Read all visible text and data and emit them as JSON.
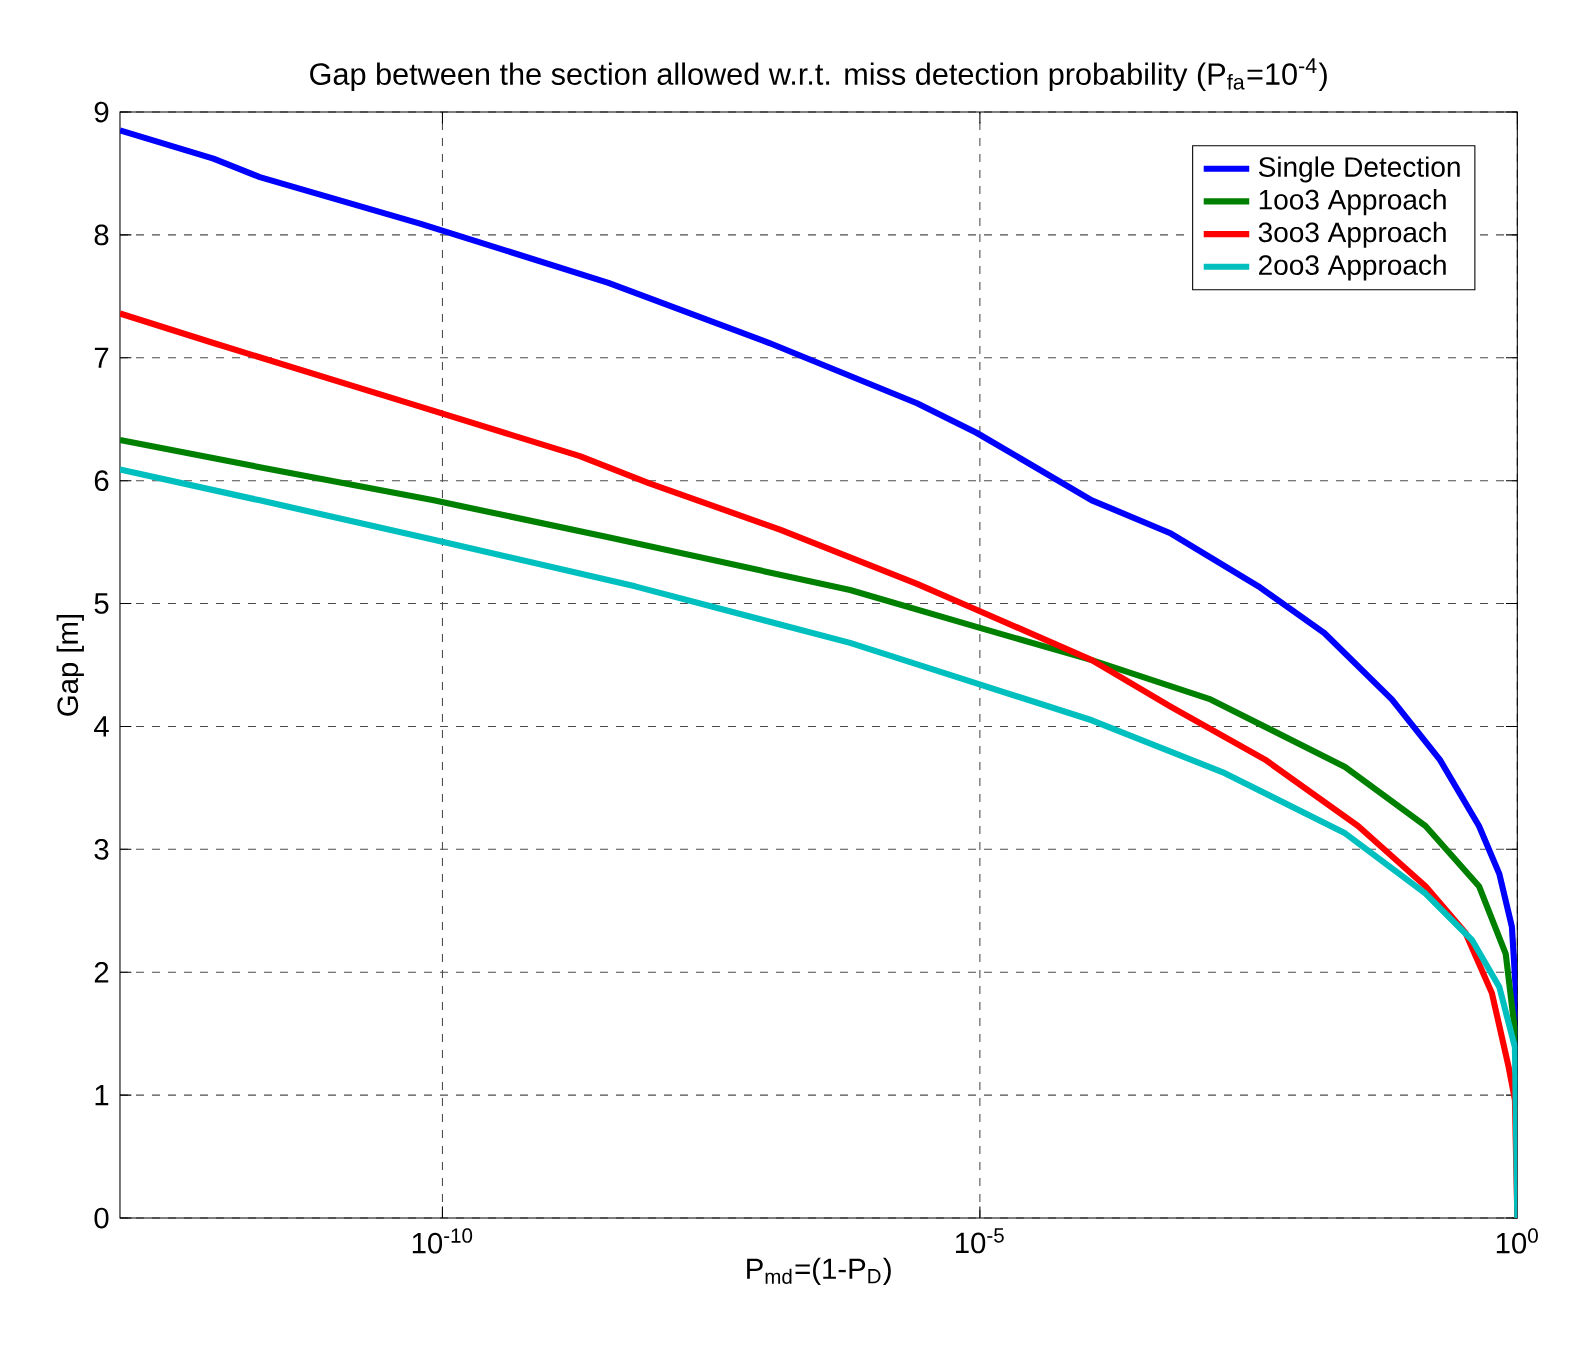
{
  "chart_data": {
    "type": "line",
    "title": "Gap between the section allowed w.r.t. miss detection probability (P$_{fa}$=10$^{-4}$)",
    "xlabel": "P$_{md}$=(1-P$_{D}$)",
    "ylabel": "Gap [m]",
    "log": "x",
    "grid": true,
    "legend": "top right",
    "xlim": [
      1e-13,
      1
    ],
    "ylim": [
      0,
      9
    ],
    "xticks": [
      {
        "value": 1e-10,
        "label": "10$^{-10}$"
      },
      {
        "value": 1e-05,
        "label": "10$^{-5}$"
      },
      {
        "value": 1,
        "label": "10$^{0}$"
      }
    ],
    "yticks": [
      0,
      1,
      2,
      3,
      4,
      5,
      6,
      7,
      8,
      9
    ],
    "series": [
      {
        "name": "Single Detection",
        "color": "#0000ff",
        "x": [
          1e-13,
          7.4e-13,
          2e-12,
          6.3e-11,
          3.5e-09,
          1.1e-07,
          2.6e-06,
          9.3e-06,
          0.00011,
          0.0006,
          0.0039,
          0.016,
          0.068,
          0.19,
          0.44,
          0.68,
          0.89,
          0.99,
          1
        ],
        "values": [
          8.85,
          8.62,
          8.47,
          8.09,
          7.61,
          7.12,
          6.63,
          6.39,
          5.84,
          5.57,
          5.14,
          4.76,
          4.22,
          3.73,
          3.19,
          2.8,
          2.37,
          1.72,
          0
        ]
      },
      {
        "name": "1oo3 Approach",
        "color": "#008000",
        "x": [
          1e-13,
          2e-12,
          8.3e-11,
          3.5e-09,
          6.2e-07,
          9.3e-06,
          0.00011,
          0.0014,
          0.025,
          0.14,
          0.44,
          0.78,
          0.99,
          1
        ],
        "values": [
          6.33,
          6.11,
          5.84,
          5.54,
          5.11,
          4.81,
          4.54,
          4.22,
          3.67,
          3.19,
          2.7,
          2.15,
          1.39,
          0
        ]
      },
      {
        "name": "3oo3 Approach",
        "color": "#ff0000",
        "x": [
          1e-13,
          7.4e-13,
          6.3e-11,
          1.9e-09,
          8.3e-09,
          1.4e-07,
          2.6e-06,
          9.3e-06,
          0.00011,
          0.0006,
          0.0045,
          0.033,
          0.14,
          0.33,
          0.58,
          0.83,
          0.95,
          1
        ],
        "values": [
          7.36,
          7.12,
          6.6,
          6.2,
          5.98,
          5.6,
          5.16,
          4.95,
          4.54,
          4.16,
          3.73,
          3.19,
          2.7,
          2.32,
          1.83,
          1.23,
          0.96,
          0
        ]
      },
      {
        "name": "2oo3 Approach",
        "color": "#00bfbf",
        "x": [
          1e-13,
          2e-12,
          8.3e-11,
          6.2e-09,
          6.2e-07,
          9.3e-06,
          0.00011,
          0.0019,
          0.025,
          0.14,
          0.38,
          0.68,
          0.95,
          1
        ],
        "values": [
          6.09,
          5.84,
          5.52,
          5.14,
          4.68,
          4.35,
          4.05,
          3.62,
          3.13,
          2.64,
          2.26,
          1.88,
          1.39,
          0
        ]
      }
    ]
  }
}
